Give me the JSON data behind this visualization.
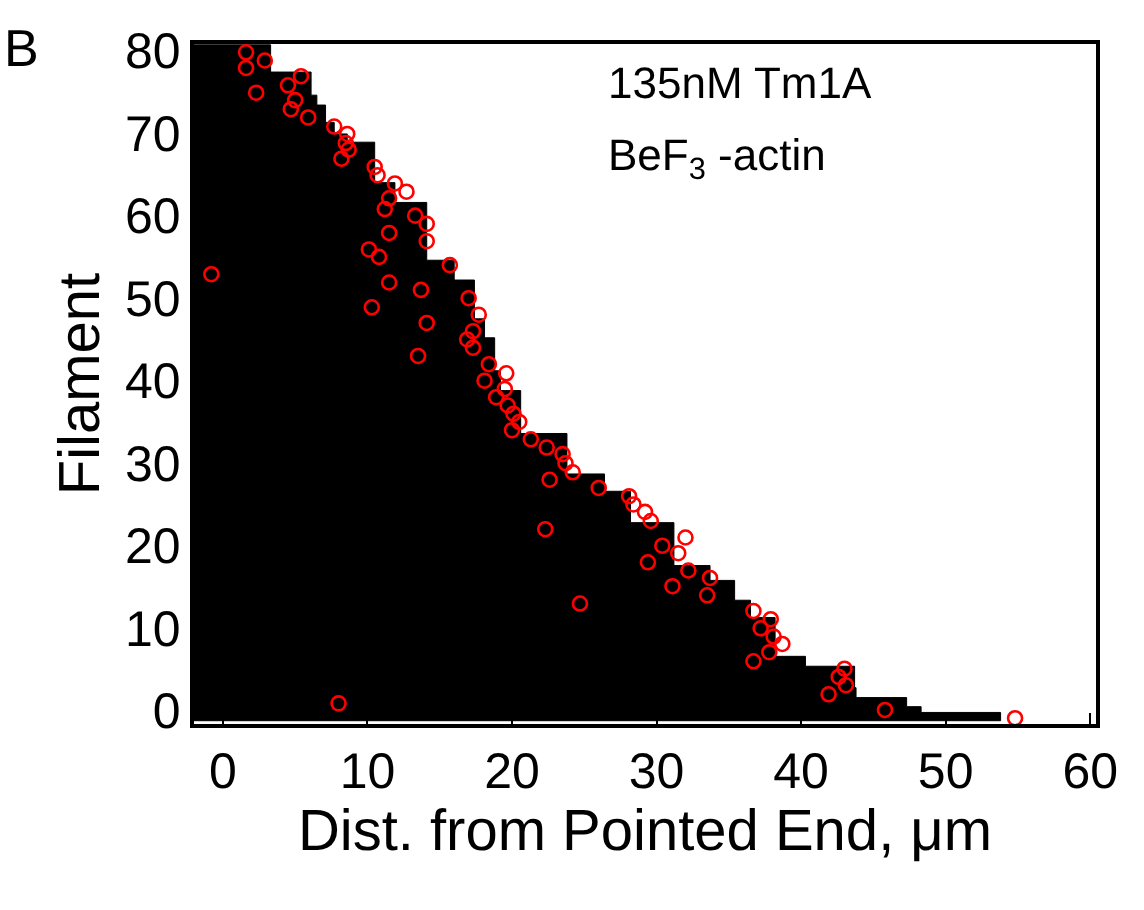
{
  "chart_data": {
    "type": "scatter",
    "xlabel": "Dist. from Pointed End, μm",
    "ylabel": "Filament",
    "annotations": [
      "B",
      "135nM Tm1A",
      "BeF$_{3}$ -actin"
    ],
    "xlim": [
      -2,
      60.4
    ],
    "ylim": [
      -1.6,
      80.8
    ],
    "xticks": [
      0,
      10,
      20,
      30,
      40,
      50,
      60
    ],
    "yticks": [
      0,
      10,
      20,
      30,
      40,
      50,
      60,
      70,
      80
    ],
    "series": [
      {
        "type": "area",
        "color": "#000000",
        "x": [
          -2,
          3.3,
          3.3,
          6.1,
          6.1,
          6.5,
          6.5,
          7.1,
          7.1,
          7.7,
          7.7,
          8.6,
          8.6,
          10.5,
          10.5,
          11.9,
          11.9,
          14.1,
          14.1,
          16,
          16,
          17.4,
          17.4,
          18.1,
          18.1,
          18.8,
          18.8,
          19.2,
          19.2,
          20.6,
          20.6,
          23.8,
          23.8,
          26.4,
          26.4,
          28.2,
          28.2,
          31.2,
          31.2,
          33.7,
          33.7,
          35.4,
          35.4,
          36.5,
          36.5,
          38.2,
          38.2,
          40.3,
          40.3,
          43.7,
          43.7,
          43.8,
          43.8,
          47.3,
          47.3,
          48.3,
          48.3,
          53.8,
          53.8,
          -2
        ],
        "values": [
          80.7,
          80.7,
          77.4,
          77.4,
          74.6,
          74.6,
          73.4,
          73.4,
          71.3,
          71.3,
          69.9,
          69.9,
          68.9,
          68.9,
          64,
          64,
          61.6,
          61.6,
          54.6,
          54.6,
          52.2,
          52.2,
          47.5,
          47.5,
          45.2,
          45.2,
          41.2,
          41.2,
          38.8,
          38.8,
          33.6,
          33.6,
          28.7,
          28.7,
          26.6,
          26.6,
          22.8,
          22.8,
          17.6,
          17.6,
          15.8,
          15.8,
          13.4,
          13.4,
          11.3,
          11.3,
          6.6,
          6.6,
          5.4,
          5.4,
          2.8,
          2.8,
          1.6,
          1.6,
          0.5,
          0.5,
          -0.2,
          -0.2,
          -1.2,
          -1.2
        ]
      },
      {
        "color": "#ff0000",
        "marker": "circle",
        "x": [
          1.6,
          2.9,
          1.6,
          5.4,
          4.5,
          2.3,
          5.0,
          4.7,
          5.9,
          7.7,
          8.6,
          8.5,
          8.7,
          8.2,
          10.5,
          10.7,
          11.9,
          12.7,
          11.5,
          11.2,
          13.3,
          14.1,
          11.5,
          14.1,
          10.1,
          10.8,
          15.7,
          -0.8,
          11.5,
          13.7,
          17.0,
          10.3,
          17.7,
          14.1,
          17.3,
          16.9,
          17.3,
          13.5,
          18.4,
          19.6,
          18.1,
          19.5,
          18.9,
          19.7,
          20.1,
          20.5,
          20.0,
          21.3,
          22.4,
          23.5,
          23.7,
          24.2,
          22.6,
          26.0,
          28.1,
          28.4,
          29.2,
          29.6,
          22.3,
          32.0,
          30.4,
          31.5,
          29.4,
          32.2,
          33.7,
          31.1,
          33.5,
          24.7,
          36.7,
          37.9,
          37.2,
          38.1,
          38.7,
          37.8,
          36.7,
          43.0,
          42.6,
          43.1,
          41.9,
          8.0,
          45.8,
          54.8
        ],
        "values": [
          79.8,
          78.8,
          77.9,
          76.9,
          75.8,
          74.9,
          74.0,
          72.9,
          71.9,
          70.8,
          69.9,
          68.8,
          68.0,
          66.9,
          65.9,
          64.9,
          63.9,
          62.9,
          62.1,
          60.8,
          60.0,
          59.0,
          57.9,
          56.9,
          55.9,
          55.0,
          54.0,
          52.9,
          51.9,
          51.0,
          50.0,
          48.9,
          48.0,
          47.0,
          46.0,
          45.0,
          44.0,
          43.0,
          42.0,
          40.9,
          40.0,
          39.0,
          38.0,
          37.0,
          36.0,
          35.0,
          34.0,
          32.9,
          31.9,
          31.1,
          30.0,
          28.9,
          28.0,
          27.0,
          26.0,
          25.0,
          24.1,
          23.0,
          22.0,
          21.0,
          20.0,
          19.1,
          18.0,
          17.0,
          16.1,
          15.1,
          14.0,
          13.0,
          12.1,
          11.1,
          10.0,
          9.0,
          8.1,
          7.1,
          6.0,
          5.1,
          4.1,
          3.1,
          2.0,
          0.9,
          0.1,
          -0.9
        ]
      }
    ]
  }
}
